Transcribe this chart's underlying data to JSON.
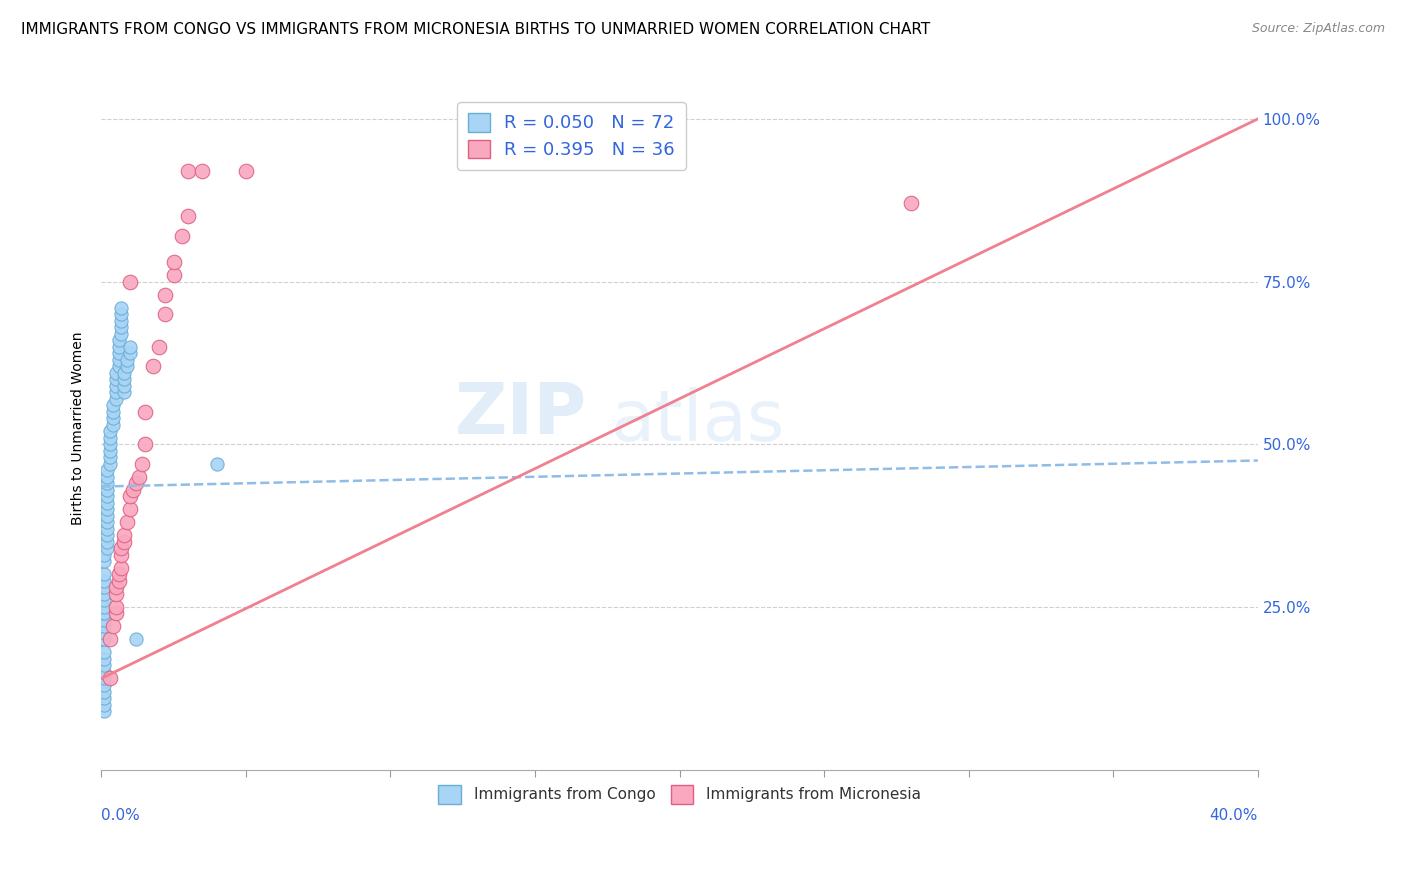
{
  "title": "IMMIGRANTS FROM CONGO VS IMMIGRANTS FROM MICRONESIA BIRTHS TO UNMARRIED WOMEN CORRELATION CHART",
  "source": "Source: ZipAtlas.com",
  "ylabel": "Births to Unmarried Women",
  "ytick_labels": [
    "100.0%",
    "75.0%",
    "50.0%",
    "25.0%"
  ],
  "ytick_values": [
    1.0,
    0.75,
    0.5,
    0.25
  ],
  "xlim": [
    0.0,
    0.4
  ],
  "ylim": [
    0.0,
    1.05
  ],
  "watermark_text": "ZIP",
  "watermark_text2": "atlas",
  "background_color": "#ffffff",
  "grid_color": "#d0d0d0",
  "congo_color": "#a8d4f5",
  "congo_edge_color": "#6aaed6",
  "micronesia_color": "#f9a8c0",
  "micronesia_edge_color": "#e06080",
  "congo_line_color": "#90bce8",
  "micronesia_line_color": "#f08090",
  "congo_line_x": [
    0.0,
    0.4
  ],
  "congo_line_y": [
    0.435,
    0.475
  ],
  "micronesia_line_x": [
    0.0,
    0.4
  ],
  "micronesia_line_y": [
    0.14,
    1.0
  ],
  "congo_scatter_x": [
    0.001,
    0.001,
    0.001,
    0.001,
    0.001,
    0.001,
    0.001,
    0.001,
    0.001,
    0.001,
    0.001,
    0.001,
    0.001,
    0.001,
    0.001,
    0.001,
    0.001,
    0.001,
    0.001,
    0.001,
    0.001,
    0.001,
    0.001,
    0.001,
    0.002,
    0.002,
    0.002,
    0.002,
    0.002,
    0.002,
    0.002,
    0.002,
    0.002,
    0.002,
    0.002,
    0.002,
    0.002,
    0.003,
    0.003,
    0.003,
    0.003,
    0.003,
    0.003,
    0.004,
    0.004,
    0.004,
    0.004,
    0.005,
    0.005,
    0.005,
    0.005,
    0.005,
    0.006,
    0.006,
    0.006,
    0.006,
    0.006,
    0.007,
    0.007,
    0.007,
    0.007,
    0.007,
    0.008,
    0.008,
    0.008,
    0.008,
    0.009,
    0.009,
    0.01,
    0.01,
    0.012,
    0.04
  ],
  "congo_scatter_y": [
    0.09,
    0.1,
    0.11,
    0.12,
    0.13,
    0.14,
    0.15,
    0.16,
    0.17,
    0.18,
    0.2,
    0.21,
    0.22,
    0.23,
    0.24,
    0.24,
    0.25,
    0.26,
    0.27,
    0.28,
    0.29,
    0.3,
    0.32,
    0.33,
    0.34,
    0.35,
    0.36,
    0.37,
    0.38,
    0.39,
    0.4,
    0.41,
    0.42,
    0.43,
    0.44,
    0.45,
    0.46,
    0.47,
    0.48,
    0.49,
    0.5,
    0.51,
    0.52,
    0.53,
    0.54,
    0.55,
    0.56,
    0.57,
    0.58,
    0.59,
    0.6,
    0.61,
    0.62,
    0.63,
    0.64,
    0.65,
    0.66,
    0.67,
    0.68,
    0.69,
    0.7,
    0.71,
    0.58,
    0.59,
    0.6,
    0.61,
    0.62,
    0.63,
    0.64,
    0.65,
    0.2,
    0.47
  ],
  "micronesia_scatter_x": [
    0.003,
    0.004,
    0.005,
    0.005,
    0.005,
    0.005,
    0.006,
    0.006,
    0.007,
    0.007,
    0.007,
    0.008,
    0.008,
    0.009,
    0.01,
    0.01,
    0.011,
    0.012,
    0.013,
    0.014,
    0.015,
    0.015,
    0.018,
    0.02,
    0.022,
    0.022,
    0.025,
    0.025,
    0.028,
    0.03,
    0.03,
    0.035,
    0.05,
    0.28,
    0.003,
    0.01
  ],
  "micronesia_scatter_y": [
    0.2,
    0.22,
    0.24,
    0.25,
    0.27,
    0.28,
    0.29,
    0.3,
    0.31,
    0.33,
    0.34,
    0.35,
    0.36,
    0.38,
    0.4,
    0.42,
    0.43,
    0.44,
    0.45,
    0.47,
    0.5,
    0.55,
    0.62,
    0.65,
    0.7,
    0.73,
    0.76,
    0.78,
    0.82,
    0.85,
    0.92,
    0.92,
    0.92,
    0.87,
    0.14,
    0.75
  ],
  "legend1_r": "R = ",
  "legend1_r_val": "0.050",
  "legend1_n": "  N = ",
  "legend1_n_val": "72",
  "legend2_r": "R = ",
  "legend2_r_val": "0.395",
  "legend2_n": "  N = ",
  "legend2_n_val": "36",
  "title_fontsize": 11,
  "axis_label_fontsize": 10,
  "tick_fontsize": 10,
  "source_fontsize": 9,
  "legend_fontsize": 13
}
